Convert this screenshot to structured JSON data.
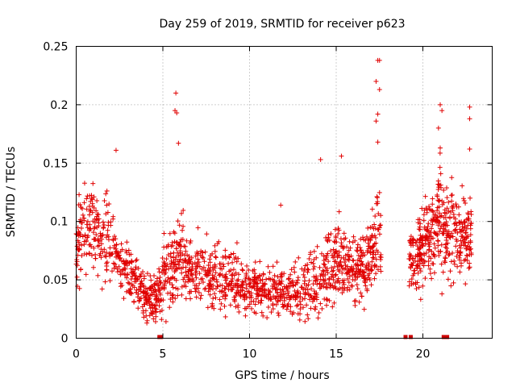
{
  "chart_data": {
    "type": "scatter",
    "title": "Day 259 of 2019, SRMTID for receiver p623",
    "xlabel": "GPS time / hours",
    "ylabel": "SRMTID / TECUs",
    "xlim": [
      0,
      24
    ],
    "ylim": [
      0,
      0.25
    ],
    "xticks": [
      0,
      5,
      10,
      15,
      20
    ],
    "xtick_labels": [
      "0",
      "5",
      "10",
      "15",
      "20"
    ],
    "yticks": [
      0,
      0.05,
      0.1,
      0.15,
      0.2,
      0.25
    ],
    "ytick_labels": [
      "0",
      "0.05",
      "0.1",
      "0.15",
      "0.2",
      "0.25"
    ],
    "grid": true,
    "marker": "+",
    "color": "#e00000",
    "series_name": "SRMTID",
    "envelope": {
      "x": [
        0,
        0.5,
        1,
        1.5,
        2,
        2.5,
        3,
        3.5,
        4,
        4.5,
        5,
        5.5,
        6,
        6.5,
        7,
        7.5,
        8,
        8.5,
        9,
        9.5,
        10,
        10.5,
        11,
        11.5,
        12,
        12.5,
        13,
        13.5,
        14,
        14.5,
        15,
        15.5,
        16,
        16.5,
        17,
        17.5,
        19.2,
        19.5,
        20,
        20.5,
        21,
        21.5,
        22,
        22.5
      ],
      "y": [
        0.08,
        0.09,
        0.1,
        0.08,
        0.09,
        0.06,
        0.055,
        0.045,
        0.035,
        0.035,
        0.045,
        0.065,
        0.07,
        0.06,
        0.06,
        0.055,
        0.05,
        0.05,
        0.055,
        0.045,
        0.04,
        0.045,
        0.04,
        0.04,
        0.04,
        0.04,
        0.04,
        0.05,
        0.045,
        0.06,
        0.07,
        0.065,
        0.06,
        0.06,
        0.07,
        0.09,
        0.07,
        0.065,
        0.08,
        0.09,
        0.1,
        0.09,
        0.085,
        0.09
      ],
      "spread": [
        0.025,
        0.025,
        0.025,
        0.025,
        0.03,
        0.015,
        0.015,
        0.015,
        0.012,
        0.012,
        0.02,
        0.025,
        0.025,
        0.02,
        0.02,
        0.02,
        0.02,
        0.02,
        0.02,
        0.018,
        0.015,
        0.015,
        0.015,
        0.015,
        0.015,
        0.015,
        0.015,
        0.02,
        0.02,
        0.025,
        0.025,
        0.02,
        0.02,
        0.02,
        0.025,
        0.03,
        0.02,
        0.02,
        0.025,
        0.025,
        0.03,
        0.025,
        0.025,
        0.025
      ]
    },
    "data_extent_hours": [
      0,
      17.6
    ],
    "data_extent2_hours": [
      19.2,
      22.8
    ],
    "outliers": [
      {
        "x": 5.75,
        "y": 0.21
      },
      {
        "x": 5.7,
        "y": 0.195
      },
      {
        "x": 5.8,
        "y": 0.193
      },
      {
        "x": 5.9,
        "y": 0.167
      },
      {
        "x": 2.3,
        "y": 0.161
      },
      {
        "x": 14.1,
        "y": 0.153
      },
      {
        "x": 15.3,
        "y": 0.156
      },
      {
        "x": 17.4,
        "y": 0.238
      },
      {
        "x": 17.5,
        "y": 0.238
      },
      {
        "x": 17.3,
        "y": 0.22
      },
      {
        "x": 17.5,
        "y": 0.213
      },
      {
        "x": 17.4,
        "y": 0.192
      },
      {
        "x": 17.3,
        "y": 0.186
      },
      {
        "x": 17.4,
        "y": 0.168
      },
      {
        "x": 21.0,
        "y": 0.2
      },
      {
        "x": 21.1,
        "y": 0.195
      },
      {
        "x": 20.9,
        "y": 0.18
      },
      {
        "x": 21.0,
        "y": 0.163
      },
      {
        "x": 22.7,
        "y": 0.198
      },
      {
        "x": 22.7,
        "y": 0.188
      },
      {
        "x": 22.7,
        "y": 0.162
      },
      {
        "x": 11.8,
        "y": 0.114
      },
      {
        "x": 21.1,
        "y": 0.038
      },
      {
        "x": 4.1,
        "y": 0.015
      },
      {
        "x": 3.9,
        "y": 0.018
      }
    ],
    "zero_markers": [
      {
        "x": 4.8,
        "y": 0
      },
      {
        "x": 4.9,
        "y": 0
      },
      {
        "x": 19.0,
        "y": 0
      },
      {
        "x": 19.3,
        "y": 0
      },
      {
        "x": 21.2,
        "y": 0
      },
      {
        "x": 21.4,
        "y": 0
      }
    ]
  }
}
